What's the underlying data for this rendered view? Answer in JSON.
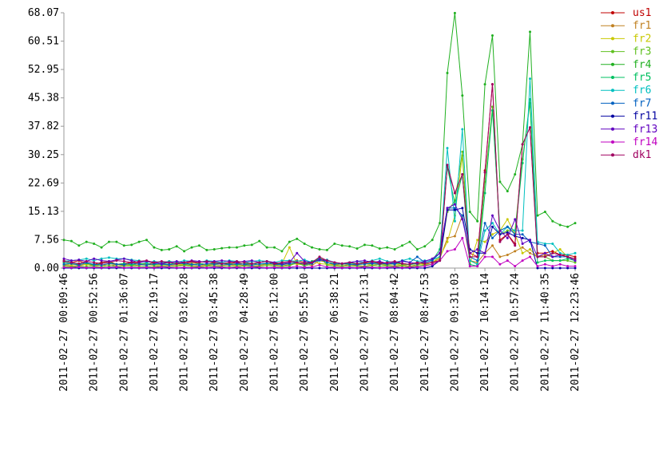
{
  "chart_data": {
    "type": "line",
    "categories": [
      "2011-02-27 00:09:46",
      null,
      null,
      null,
      "2011-02-27 00:52:56",
      null,
      null,
      null,
      "2011-02-27 01:36:07",
      null,
      null,
      null,
      "2011-02-27 02:19:17",
      null,
      null,
      null,
      "2011-02-27 03:02:28",
      null,
      null,
      null,
      "2011-02-27 03:45:38",
      null,
      null,
      null,
      "2011-02-27 04:28:49",
      null,
      null,
      null,
      "2011-02-27 05:12:00",
      null,
      null,
      null,
      "2011-02-27 05:55:10",
      null,
      null,
      null,
      "2011-02-27 06:38:21",
      null,
      null,
      null,
      "2011-02-27 07:21:31",
      null,
      null,
      null,
      "2011-02-27 08:04:42",
      null,
      null,
      null,
      "2011-02-27 08:47:53",
      null,
      null,
      null,
      "2011-02-27 09:31:03",
      null,
      null,
      null,
      "2011-02-27 10:14:14",
      null,
      null,
      null,
      "2011-02-27 10:57:24",
      null,
      null,
      null,
      "2011-02-27 11:40:35",
      null,
      null,
      null,
      "2011-02-27 12:23:46"
    ],
    "ylim": [
      0,
      68.07
    ],
    "yticks": [
      {
        "value": 0,
        "label": "0.00"
      },
      7.56,
      15.13,
      22.69,
      30.25,
      37.82,
      45.38,
      52.95,
      60.51,
      68.07
    ],
    "series": [
      {
        "name": "us1",
        "color": "#c00000",
        "values": [
          2,
          1.5,
          2,
          1.2,
          1,
          1.5,
          1.8,
          1,
          1.2,
          1.5,
          1.3,
          1,
          1.5,
          1.2,
          1.8,
          1.5,
          1.2,
          1.6,
          1.2,
          1,
          1.5,
          1.3,
          1.2,
          1.5,
          1,
          1.2,
          1.5,
          1.8,
          1.2,
          1,
          1.5,
          2,
          1.5,
          1.2,
          2.5,
          2,
          1.5,
          1.2,
          1.5,
          1,
          1.3,
          1.8,
          1.5,
          1.2,
          1.5,
          1.2,
          1,
          1.5,
          1.2,
          1.5,
          2,
          27,
          20,
          25,
          4,
          3,
          26,
          49,
          7.5,
          9,
          6.5,
          33,
          37.5,
          4,
          4,
          4.5,
          3.5,
          3.5,
          3
        ]
      },
      {
        "name": "fr1",
        "color": "#c08020",
        "values": [
          0.8,
          0.5,
          0.7,
          1,
          0.6,
          0.8,
          0.5,
          0.9,
          0.7,
          0.6,
          0.8,
          1,
          0.7,
          0.5,
          0.8,
          0.6,
          0.9,
          0.7,
          0.5,
          0.8,
          0.6,
          0.7,
          0.9,
          0.6,
          0.8,
          0.5,
          0.7,
          1,
          0.8,
          0.6,
          0.9,
          1.2,
          1,
          0.7,
          2,
          1.5,
          0.8,
          0.6,
          0.9,
          0.7,
          0.5,
          0.8,
          1,
          0.7,
          0.6,
          0.8,
          0.5,
          0.9,
          1.2,
          1.5,
          2.5,
          8,
          8.5,
          14,
          2,
          1.5,
          4,
          6,
          3,
          3.5,
          4.5,
          5.5,
          4,
          3,
          3.5,
          3,
          3.5,
          3,
          2.5
        ]
      },
      {
        "name": "fr2",
        "color": "#c8c800",
        "values": [
          1,
          0.8,
          1.2,
          0.9,
          1,
          0.7,
          1.1,
          0.9,
          1,
          0.8,
          1.2,
          0.9,
          1,
          0.8,
          1.1,
          0.9,
          1,
          1.2,
          0.8,
          1,
          0.9,
          1.1,
          1,
          0.8,
          1.2,
          0.9,
          1,
          1.1,
          0.8,
          1.2,
          5.5,
          1,
          0.9,
          1.8,
          1.2,
          1,
          0.8,
          1.1,
          0.9,
          1,
          1.2,
          0.8,
          1,
          0.9,
          1.1,
          0.8,
          1,
          1.2,
          0.9,
          1.5,
          3,
          7,
          14,
          30,
          1,
          7.5,
          7,
          9,
          10,
          13,
          9,
          4,
          5,
          3,
          3,
          4,
          5,
          3,
          2.5
        ]
      },
      {
        "name": "fr3",
        "color": "#60c020",
        "values": [
          0.5,
          0.3,
          0.6,
          0.4,
          0.5,
          0.3,
          0.7,
          0.4,
          0.5,
          0.6,
          0.4,
          0.5,
          0.3,
          0.6,
          0.4,
          0.5,
          0.7,
          0.4,
          0.3,
          0.5,
          0.6,
          0.4,
          0.5,
          0.3,
          0.6,
          0.5,
          0.4,
          0.7,
          0.5,
          0.4,
          0.6,
          1.5,
          0.5,
          1.2,
          3,
          0.8,
          0.5,
          0.4,
          0.6,
          0.5,
          0.4,
          0.7,
          0.5,
          0.6,
          0.4,
          0.5,
          0.3,
          0.6,
          0.8,
          1,
          2,
          15,
          18,
          31,
          2,
          1,
          23,
          43,
          9,
          10,
          10,
          29,
          44,
          3,
          3,
          2,
          2,
          2,
          1.5
        ]
      },
      {
        "name": "fr4",
        "color": "#20b020",
        "values": [
          7.5,
          7.2,
          6,
          7,
          6.5,
          5.5,
          7,
          7,
          6,
          6.2,
          7,
          7.5,
          5.5,
          4.8,
          5,
          5.8,
          4.5,
          5.5,
          6,
          4.8,
          5,
          5.3,
          5.5,
          5.5,
          6,
          6.2,
          7.2,
          5.5,
          5.5,
          4.5,
          7,
          7.8,
          6.5,
          5.5,
          5,
          4.8,
          6.5,
          6,
          5.8,
          5.2,
          6.2,
          6,
          5.2,
          5.5,
          5,
          6,
          7,
          5,
          5.8,
          7.5,
          12,
          52,
          68,
          46,
          15,
          12.5,
          49,
          62,
          23,
          20.5,
          25,
          33,
          63,
          14,
          15,
          12.5,
          11.5,
          11,
          12
        ]
      },
      {
        "name": "fr5",
        "color": "#00c060",
        "values": [
          1.5,
          1.2,
          1,
          1.3,
          0.8,
          1.2,
          1.5,
          1,
          1.2,
          0.9,
          1.1,
          1.3,
          0.9,
          1.2,
          1,
          1.4,
          1.1,
          0.9,
          1.2,
          1,
          1.3,
          1,
          1.2,
          0.9,
          1.1,
          1.3,
          1,
          1.2,
          1.4,
          1,
          1.1,
          1.5,
          1.2,
          1.8,
          2.5,
          1.5,
          1.2,
          1,
          1.3,
          1.1,
          1,
          1.5,
          1.2,
          1,
          1.3,
          1.1,
          0.9,
          1.2,
          1.5,
          2,
          5,
          27,
          17,
          25,
          1,
          0.5,
          20,
          42,
          10,
          11,
          9,
          28,
          45,
          1.5,
          2,
          2,
          2,
          2.5,
          2
        ]
      },
      {
        "name": "fr6",
        "color": "#00c0c0",
        "values": [
          1.8,
          2,
          2.2,
          2.5,
          2,
          2.5,
          2.8,
          2.5,
          2.5,
          2.2,
          2,
          1.5,
          1.8,
          1.5,
          1.8,
          1.5,
          2,
          1.8,
          1.5,
          2,
          1.8,
          1.5,
          2,
          1.8,
          1.5,
          1.8,
          2,
          1.8,
          1.5,
          2,
          2,
          1.8,
          2.2,
          1.5,
          2,
          2.2,
          1.5,
          1.2,
          1.5,
          1.8,
          1.5,
          2,
          2.5,
          1.8,
          1.5,
          2,
          2.5,
          1.8,
          2,
          2.2,
          3,
          32,
          12.5,
          37,
          2,
          1,
          10,
          12,
          9,
          11,
          10,
          10,
          50.5,
          7,
          6.5,
          6.5,
          4,
          3.5,
          4
        ]
      },
      {
        "name": "fr7",
        "color": "#0060c0",
        "values": [
          1,
          1.2,
          0.8,
          1.5,
          1,
          0.8,
          1.2,
          1,
          0.9,
          1.3,
          1,
          0.8,
          1.2,
          1,
          0.9,
          1.1,
          1.3,
          1,
          0.8,
          1.2,
          1,
          1.1,
          0.9,
          1.2,
          1,
          0.8,
          1.1,
          1.3,
          1,
          0.9,
          1.2,
          1.5,
          1,
          1.2,
          2.5,
          1.5,
          1,
          1.2,
          1,
          0.9,
          1.1,
          1.2,
          1,
          1.3,
          1,
          2,
          1.5,
          3,
          1.5,
          2,
          4,
          16,
          16,
          14,
          3,
          2,
          12,
          8,
          10,
          11,
          9,
          9,
          7,
          6.5,
          6,
          3,
          3,
          3,
          2
        ]
      },
      {
        "name": "fr11",
        "color": "#0000a0",
        "values": [
          0,
          0,
          0,
          0,
          0,
          0,
          0,
          0,
          0,
          0,
          0,
          0,
          0,
          0,
          0,
          0,
          0,
          0,
          0,
          0,
          0,
          0,
          0,
          0,
          0,
          0,
          0,
          0,
          0,
          0,
          0,
          0,
          0,
          0,
          0,
          0,
          0,
          0,
          0,
          0,
          0,
          0,
          0,
          0,
          0,
          0,
          0,
          0,
          0,
          0.5,
          2,
          15.5,
          15.5,
          16,
          5,
          4,
          4,
          11,
          9,
          9.5,
          8.5,
          8,
          7.5,
          0,
          0,
          0,
          0,
          0,
          0
        ]
      },
      {
        "name": "fr13",
        "color": "#6000c0",
        "values": [
          2.5,
          2,
          2.2,
          1.8,
          2.5,
          2,
          1.8,
          2.2,
          2.5,
          2,
          1.5,
          1.8,
          1.5,
          1.2,
          1.5,
          1.8,
          1.5,
          2,
          1.8,
          1.5,
          1.8,
          2,
          1.8,
          1.5,
          1.8,
          2,
          1.5,
          1.8,
          1.5,
          1.2,
          1.5,
          4,
          1.8,
          1.5,
          2.2,
          2,
          1.5,
          1.2,
          1.5,
          1.8,
          2,
          1.5,
          1.8,
          1.2,
          1.5,
          1.8,
          1.5,
          1.2,
          1.8,
          2.5,
          4,
          16,
          17,
          13,
          4,
          5,
          4,
          14,
          10,
          8,
          13,
          6.5,
          7.5,
          3,
          4,
          3,
          3.5,
          3,
          2
        ]
      },
      {
        "name": "fr14",
        "color": "#c000c0",
        "values": [
          0.2,
          0.1,
          0.3,
          0.1,
          0.2,
          0.1,
          0.2,
          0.3,
          0.1,
          0.2,
          0.1,
          0.2,
          0.1,
          0.3,
          0.2,
          0.1,
          0.2,
          0.1,
          0.2,
          0.1,
          0.3,
          0.2,
          0.1,
          0.2,
          0.1,
          0.3,
          0.2,
          0.1,
          0.2,
          0.1,
          0.2,
          0.5,
          0.2,
          0.3,
          0.8,
          0.3,
          0.2,
          0.1,
          0.2,
          0.1,
          0.3,
          0.2,
          0.1,
          0.2,
          0.3,
          0.1,
          0.2,
          0.3,
          0.5,
          1,
          2,
          4.5,
          5,
          8,
          0.5,
          0.5,
          3,
          3,
          1,
          2,
          0.5,
          2,
          3,
          0.5,
          1,
          0.5,
          1,
          0.5,
          0.5
        ]
      },
      {
        "name": "dk1",
        "color": "#a00060",
        "values": [
          1.8,
          1.5,
          1.2,
          1.8,
          1.5,
          1.2,
          1.5,
          2,
          1.8,
          1.5,
          1.8,
          2,
          1.5,
          1.8,
          1.5,
          1.2,
          1.5,
          1.8,
          1.5,
          1.8,
          1.5,
          1.2,
          1.5,
          1.8,
          1.5,
          1.2,
          1.5,
          1.8,
          1.2,
          1.5,
          1.8,
          1.5,
          1.2,
          1.5,
          3,
          2,
          1.5,
          1.2,
          1.5,
          1.2,
          1.5,
          1.8,
          1.2,
          1.5,
          1.8,
          1.2,
          1,
          1.5,
          1.2,
          1.5,
          2,
          27.5,
          20,
          25,
          3,
          3,
          25.5,
          49,
          7,
          9,
          6,
          33,
          37.5,
          3,
          3,
          4,
          3.5,
          3,
          2.5
        ]
      }
    ]
  }
}
